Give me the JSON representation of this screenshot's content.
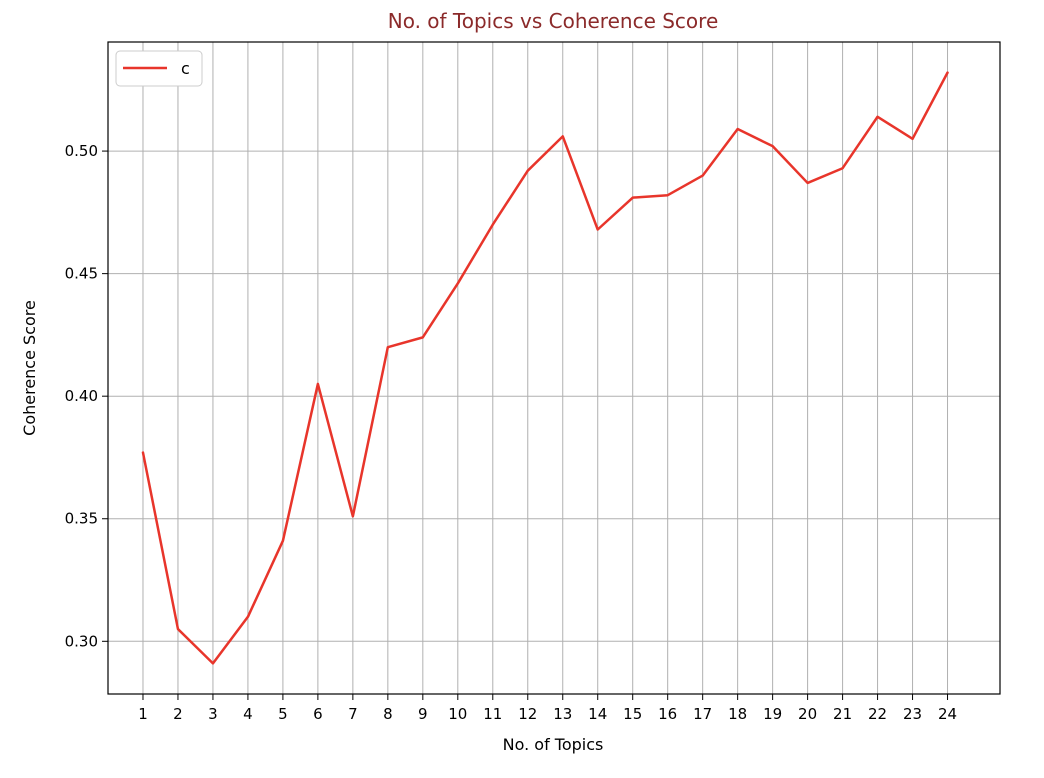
{
  "chart_data": {
    "type": "line",
    "title": "No. of Topics vs Coherence Score",
    "xlabel": "No. of Topics",
    "ylabel": "Coherence Score",
    "x": [
      1,
      2,
      3,
      4,
      5,
      6,
      7,
      8,
      9,
      10,
      11,
      12,
      13,
      14,
      15,
      16,
      17,
      18,
      19,
      20,
      21,
      22,
      23,
      24
    ],
    "xticks": [
      "1",
      "2",
      "3",
      "4",
      "5",
      "6",
      "7",
      "8",
      "9",
      "10",
      "11",
      "12",
      "13",
      "14",
      "15",
      "16",
      "17",
      "18",
      "19",
      "20",
      "21",
      "22",
      "23",
      "24"
    ],
    "yticks": [
      "0.30",
      "0.35",
      "0.40",
      "0.45",
      "0.50"
    ],
    "ytick_values": [
      0.3,
      0.35,
      0.4,
      0.45,
      0.5
    ],
    "xlim": [
      0,
      25.5
    ],
    "ylim": [
      0.2785,
      0.5445
    ],
    "grid": true,
    "legend_position": "top-left",
    "series": [
      {
        "name": "c",
        "color": "#e8352b",
        "values": [
          0.377,
          0.305,
          0.291,
          0.31,
          0.341,
          0.405,
          0.351,
          0.42,
          0.424,
          0.446,
          0.47,
          0.492,
          0.506,
          0.468,
          0.481,
          0.482,
          0.49,
          0.509,
          0.502,
          0.487,
          0.493,
          0.514,
          0.505,
          0.532
        ]
      }
    ],
    "title_color": "#8b2a2a",
    "grid_color": "#b0b0b0"
  }
}
